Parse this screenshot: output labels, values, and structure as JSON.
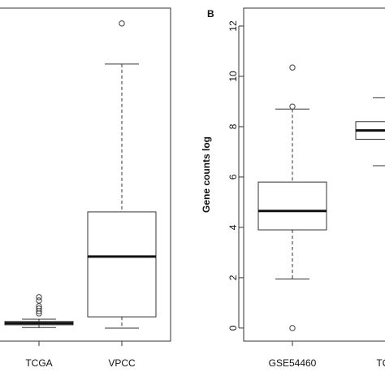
{
  "chart_data": [
    {
      "type": "box",
      "categories": [
        "TCGA",
        "VPCC"
      ],
      "ylim": [
        0,
        100
      ],
      "stats": [
        {
          "low": 4.1,
          "q1": 4.9,
          "median": 5.4,
          "q3": 5.9,
          "high": 6.6,
          "outliers": [
            8.3,
            9.0,
            9.8,
            10.5,
            12.2,
            13.2
          ]
        },
        {
          "low": 3.9,
          "q1": 7.3,
          "median": 25.4,
          "q3": 38.8,
          "high": 83.2,
          "outliers": [
            95.4
          ]
        }
      ]
    },
    {
      "type": "box",
      "title": "B",
      "ylabel": "Gene counts log",
      "categories": [
        "GSE54460",
        "TCGA"
      ],
      "ylim": [
        -0.52,
        12.71
      ],
      "yticks": [
        0,
        2,
        4,
        6,
        8,
        10,
        12
      ],
      "stats": [
        {
          "low": 1.95,
          "q1": 3.9,
          "median": 4.65,
          "q3": 5.8,
          "high": 8.7,
          "outliers": [
            0,
            8.8,
            10.35
          ]
        },
        {
          "low": 6.45,
          "q1": 7.5,
          "median": 7.85,
          "q3": 8.2,
          "high": 9.15,
          "outliers": []
        }
      ]
    }
  ]
}
